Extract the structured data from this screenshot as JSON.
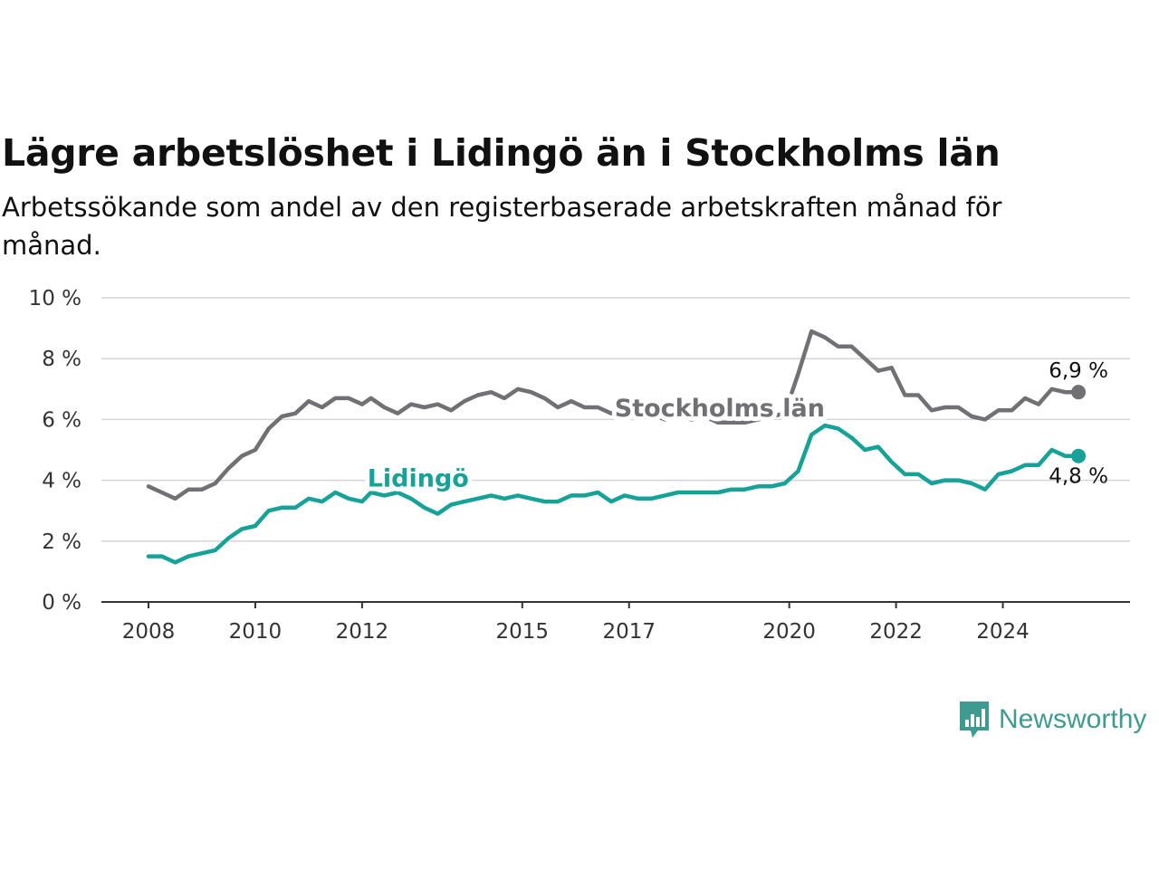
{
  "title": "Lägre arbetslöshet i Lidingö än i Stockholms län",
  "subtitle": "Arbetssökande som andel av den registerbaserade arbetskraften månad för månad.",
  "brand": {
    "name": "Newsworthy",
    "color": "#3f9a90",
    "icon": "chat-bars-icon"
  },
  "chart_data": {
    "type": "line",
    "title": "Lägre arbetslöshet i Lidingö än i Stockholms län",
    "subtitle": "Arbetssökande som andel av den registerbaserade arbetskraften månad för månad.",
    "xlim": [
      "2008-01",
      "2025-07"
    ],
    "ylim": [
      0,
      10
    ],
    "y_ticks": [
      0,
      2,
      4,
      6,
      8,
      10
    ],
    "y_tick_labels": [
      "0 %",
      "2 %",
      "4 %",
      "6 %",
      "8 %",
      "10 %"
    ],
    "x_ticks": [
      "2008-01",
      "2010-01",
      "2012-01",
      "2015-01",
      "2017-01",
      "2020-01",
      "2022-01",
      "2024-01"
    ],
    "x_tick_labels": [
      "2008",
      "2010",
      "2012",
      "2015",
      "2017",
      "2020",
      "2022",
      "2024"
    ],
    "grid": "horizontal",
    "legend": "none",
    "series": [
      {
        "name": "Stockholms län",
        "color": "#707075",
        "end_label": "6,9 %",
        "points": [
          [
            "2008-01",
            3.8
          ],
          [
            "2008-04",
            3.6
          ],
          [
            "2008-07",
            3.4
          ],
          [
            "2008-10",
            3.7
          ],
          [
            "2009-01",
            3.7
          ],
          [
            "2009-04",
            3.9
          ],
          [
            "2009-07",
            4.4
          ],
          [
            "2009-10",
            4.8
          ],
          [
            "2010-01",
            5.0
          ],
          [
            "2010-04",
            5.7
          ],
          [
            "2010-07",
            6.1
          ],
          [
            "2010-10",
            6.2
          ],
          [
            "2011-01",
            6.6
          ],
          [
            "2011-04",
            6.4
          ],
          [
            "2011-07",
            6.7
          ],
          [
            "2011-10",
            6.7
          ],
          [
            "2012-01",
            6.5
          ],
          [
            "2012-03",
            6.7
          ],
          [
            "2012-06",
            6.4
          ],
          [
            "2012-09",
            6.2
          ],
          [
            "2012-12",
            6.5
          ],
          [
            "2013-03",
            6.4
          ],
          [
            "2013-06",
            6.5
          ],
          [
            "2013-09",
            6.3
          ],
          [
            "2013-12",
            6.6
          ],
          [
            "2014-03",
            6.8
          ],
          [
            "2014-06",
            6.9
          ],
          [
            "2014-09",
            6.7
          ],
          [
            "2014-12",
            7.0
          ],
          [
            "2015-03",
            6.9
          ],
          [
            "2015-06",
            6.7
          ],
          [
            "2015-09",
            6.4
          ],
          [
            "2015-12",
            6.6
          ],
          [
            "2016-03",
            6.4
          ],
          [
            "2016-06",
            6.4
          ],
          [
            "2016-09",
            6.2
          ],
          [
            "2016-12",
            6.4
          ],
          [
            "2017-03",
            6.4
          ],
          [
            "2017-06",
            6.2
          ],
          [
            "2017-09",
            6.0
          ],
          [
            "2017-12",
            6.1
          ],
          [
            "2018-03",
            6.0
          ],
          [
            "2018-06",
            6.1
          ],
          [
            "2018-09",
            5.9
          ],
          [
            "2018-12",
            5.9
          ],
          [
            "2019-03",
            5.9
          ],
          [
            "2019-06",
            6.0
          ],
          [
            "2019-09",
            6.1
          ],
          [
            "2019-12",
            6.2
          ],
          [
            "2020-03",
            7.5
          ],
          [
            "2020-06",
            8.9
          ],
          [
            "2020-09",
            8.7
          ],
          [
            "2020-12",
            8.4
          ],
          [
            "2021-03",
            8.4
          ],
          [
            "2021-06",
            8.0
          ],
          [
            "2021-09",
            7.6
          ],
          [
            "2021-12",
            7.7
          ],
          [
            "2022-03",
            6.8
          ],
          [
            "2022-06",
            6.8
          ],
          [
            "2022-09",
            6.3
          ],
          [
            "2022-12",
            6.4
          ],
          [
            "2023-03",
            6.4
          ],
          [
            "2023-06",
            6.1
          ],
          [
            "2023-09",
            6.0
          ],
          [
            "2023-12",
            6.3
          ],
          [
            "2024-03",
            6.3
          ],
          [
            "2024-06",
            6.7
          ],
          [
            "2024-09",
            6.5
          ],
          [
            "2024-12",
            7.0
          ],
          [
            "2025-03",
            6.9
          ],
          [
            "2025-06",
            6.9
          ]
        ]
      },
      {
        "name": "Lidingö",
        "color": "#16a298",
        "end_label": "4,8 %",
        "points": [
          [
            "2008-01",
            1.5
          ],
          [
            "2008-04",
            1.5
          ],
          [
            "2008-07",
            1.3
          ],
          [
            "2008-10",
            1.5
          ],
          [
            "2009-01",
            1.6
          ],
          [
            "2009-04",
            1.7
          ],
          [
            "2009-07",
            2.1
          ],
          [
            "2009-10",
            2.4
          ],
          [
            "2010-01",
            2.5
          ],
          [
            "2010-04",
            3.0
          ],
          [
            "2010-07",
            3.1
          ],
          [
            "2010-10",
            3.1
          ],
          [
            "2011-01",
            3.4
          ],
          [
            "2011-04",
            3.3
          ],
          [
            "2011-07",
            3.6
          ],
          [
            "2011-10",
            3.4
          ],
          [
            "2012-01",
            3.3
          ],
          [
            "2012-03",
            3.6
          ],
          [
            "2012-06",
            3.5
          ],
          [
            "2012-09",
            3.6
          ],
          [
            "2012-12",
            3.4
          ],
          [
            "2013-03",
            3.1
          ],
          [
            "2013-06",
            2.9
          ],
          [
            "2013-09",
            3.2
          ],
          [
            "2013-12",
            3.3
          ],
          [
            "2014-03",
            3.4
          ],
          [
            "2014-06",
            3.5
          ],
          [
            "2014-09",
            3.4
          ],
          [
            "2014-12",
            3.5
          ],
          [
            "2015-03",
            3.4
          ],
          [
            "2015-06",
            3.3
          ],
          [
            "2015-09",
            3.3
          ],
          [
            "2015-12",
            3.5
          ],
          [
            "2016-03",
            3.5
          ],
          [
            "2016-06",
            3.6
          ],
          [
            "2016-09",
            3.3
          ],
          [
            "2016-12",
            3.5
          ],
          [
            "2017-03",
            3.4
          ],
          [
            "2017-06",
            3.4
          ],
          [
            "2017-09",
            3.5
          ],
          [
            "2017-12",
            3.6
          ],
          [
            "2018-03",
            3.6
          ],
          [
            "2018-06",
            3.6
          ],
          [
            "2018-09",
            3.6
          ],
          [
            "2018-12",
            3.7
          ],
          [
            "2019-03",
            3.7
          ],
          [
            "2019-06",
            3.8
          ],
          [
            "2019-09",
            3.8
          ],
          [
            "2019-12",
            3.9
          ],
          [
            "2020-03",
            4.3
          ],
          [
            "2020-06",
            5.5
          ],
          [
            "2020-09",
            5.8
          ],
          [
            "2020-12",
            5.7
          ],
          [
            "2021-03",
            5.4
          ],
          [
            "2021-06",
            5.0
          ],
          [
            "2021-09",
            5.1
          ],
          [
            "2021-12",
            4.6
          ],
          [
            "2022-03",
            4.2
          ],
          [
            "2022-06",
            4.2
          ],
          [
            "2022-09",
            3.9
          ],
          [
            "2022-12",
            4.0
          ],
          [
            "2023-03",
            4.0
          ],
          [
            "2023-06",
            3.9
          ],
          [
            "2023-09",
            3.7
          ],
          [
            "2023-12",
            4.2
          ],
          [
            "2024-03",
            4.3
          ],
          [
            "2024-06",
            4.5
          ],
          [
            "2024-09",
            4.5
          ],
          [
            "2024-12",
            5.0
          ],
          [
            "2025-03",
            4.8
          ],
          [
            "2025-06",
            4.8
          ]
        ]
      }
    ]
  }
}
